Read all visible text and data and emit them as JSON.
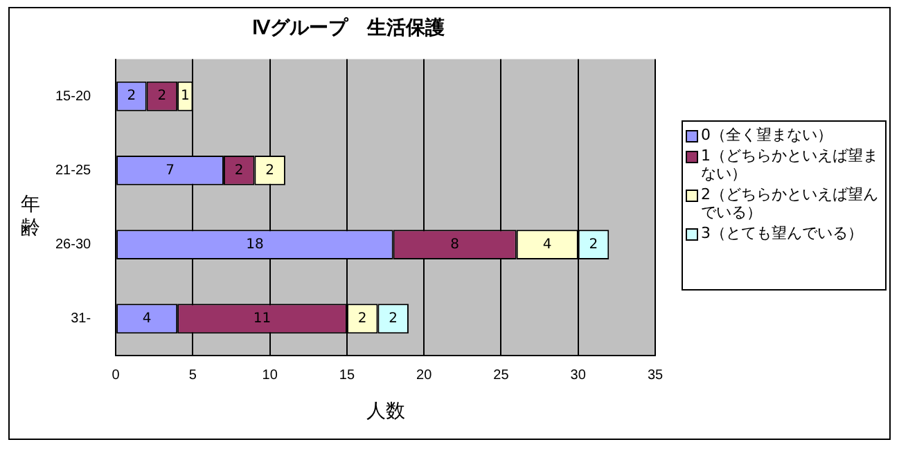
{
  "chart_data": {
    "type": "bar",
    "orientation": "horizontal",
    "stacked": true,
    "title": "Ⅳグループ　生活保護",
    "xlabel": "人数",
    "ylabel": "年齢",
    "categories": [
      "15-20",
      "21-25",
      "26-30",
      "31-"
    ],
    "series": [
      {
        "name": "0（全く望まない）",
        "color": "#9999ff",
        "values": [
          2,
          7,
          18,
          4
        ]
      },
      {
        "name": "1（どちらかといえば望まない）",
        "color": "#993366",
        "values": [
          2,
          2,
          8,
          11
        ]
      },
      {
        "name": "2（どちらかといえば望んでいる）",
        "color": "#ffffcc",
        "values": [
          1,
          2,
          4,
          2
        ]
      },
      {
        "name": "3（とても望んでいる）",
        "color": "#ccffff",
        "values": [
          null,
          null,
          2,
          2
        ]
      }
    ],
    "xlim": [
      0,
      35
    ],
    "xticks": [
      0,
      5,
      10,
      15,
      20,
      25,
      30,
      35
    ],
    "grid": "x",
    "data_labels": true,
    "legend": "right"
  }
}
